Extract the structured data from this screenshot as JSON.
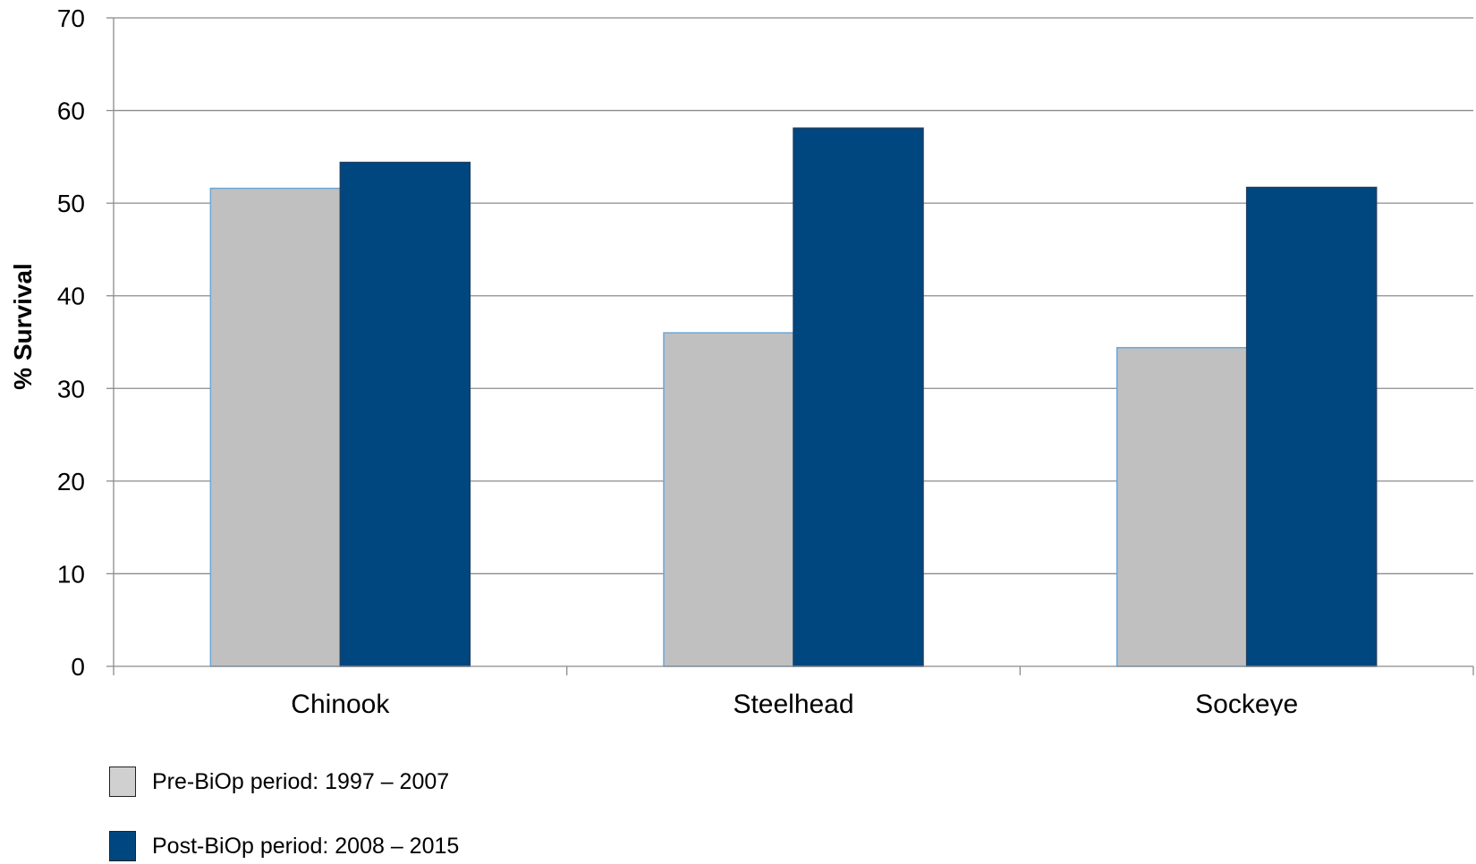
{
  "chart_data": {
    "type": "bar",
    "categories": [
      "Chinook",
      "Steelhead",
      "Sockeye"
    ],
    "series": [
      {
        "name": "Pre-BiOp period: 1997 – 2007",
        "values": [
          51.6,
          36.0,
          34.4
        ],
        "color": "#c0c0c0",
        "edge": "#6aa6d8"
      },
      {
        "name": "Post-BiOp period: 2008 – 2015",
        "values": [
          54.4,
          58.1,
          51.7
        ],
        "color": "#00477f",
        "edge": "#1b3f66"
      }
    ],
    "title": "",
    "xlabel": "",
    "ylabel": "% Survival",
    "ylim": [
      0,
      70
    ],
    "yticks": [
      "0",
      "10",
      "20",
      "30",
      "40",
      "50",
      "60",
      "70"
    ],
    "grid": true,
    "legend_position": "bottom-left"
  }
}
